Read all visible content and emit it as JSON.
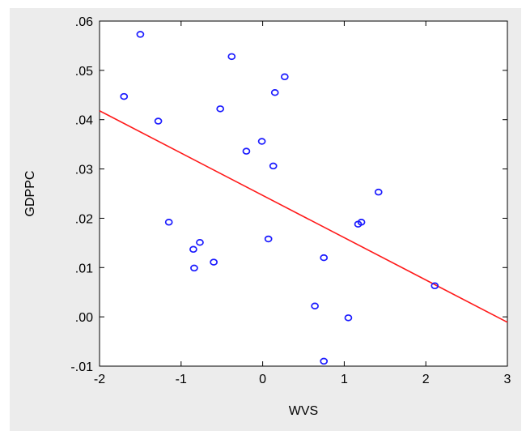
{
  "chart_data": {
    "type": "scatter",
    "title": "",
    "xlabel": "WVS",
    "ylabel": "GDPPC",
    "xlim": [
      -2,
      3
    ],
    "ylim": [
      -0.01,
      0.06
    ],
    "x_ticks": [
      {
        "value": -2,
        "label": "-2"
      },
      {
        "value": -1,
        "label": "-1"
      },
      {
        "value": 0,
        "label": "0"
      },
      {
        "value": 1,
        "label": "1"
      },
      {
        "value": 2,
        "label": "2"
      },
      {
        "value": 3,
        "label": "3"
      }
    ],
    "y_ticks": [
      {
        "value": -0.01,
        "label": "-.01"
      },
      {
        "value": 0.0,
        "label": ".00"
      },
      {
        "value": 0.01,
        "label": ".01"
      },
      {
        "value": 0.02,
        "label": ".02"
      },
      {
        "value": 0.03,
        "label": ".03"
      },
      {
        "value": 0.04,
        "label": ".04"
      },
      {
        "value": 0.05,
        "label": ".05"
      },
      {
        "value": 0.06,
        "label": ".06"
      }
    ],
    "grid": false,
    "point_color": "#1a1aff",
    "line_color": "#ff1a1a",
    "points": [
      {
        "x": -1.5,
        "y": 0.0573
      },
      {
        "x": -1.7,
        "y": 0.0447
      },
      {
        "x": -1.28,
        "y": 0.0397
      },
      {
        "x": -0.38,
        "y": 0.0528
      },
      {
        "x": -0.52,
        "y": 0.0422
      },
      {
        "x": 0.27,
        "y": 0.0487
      },
      {
        "x": 0.15,
        "y": 0.0455
      },
      {
        "x": -0.2,
        "y": 0.0336
      },
      {
        "x": -0.01,
        "y": 0.0356
      },
      {
        "x": 0.13,
        "y": 0.0306
      },
      {
        "x": 1.42,
        "y": 0.0253
      },
      {
        "x": 1.17,
        "y": 0.0188
      },
      {
        "x": 1.21,
        "y": 0.0192
      },
      {
        "x": -1.15,
        "y": 0.0192
      },
      {
        "x": -0.77,
        "y": 0.0151
      },
      {
        "x": -0.85,
        "y": 0.0137
      },
      {
        "x": 0.07,
        "y": 0.0158
      },
      {
        "x": 0.75,
        "y": 0.012
      },
      {
        "x": -0.6,
        "y": 0.0111
      },
      {
        "x": -0.84,
        "y": 0.0099
      },
      {
        "x": 0.64,
        "y": 0.0022
      },
      {
        "x": 1.05,
        "y": -0.0002
      },
      {
        "x": 2.11,
        "y": 0.0063
      },
      {
        "x": 0.75,
        "y": -0.009
      }
    ],
    "fit_line": [
      {
        "x": -2,
        "y": 0.0418
      },
      {
        "x": 3,
        "y": -0.0011
      }
    ]
  }
}
